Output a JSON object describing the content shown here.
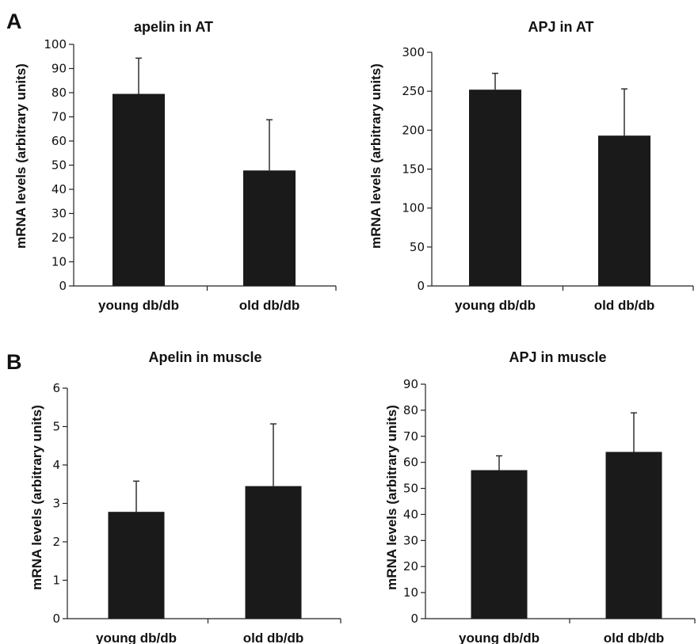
{
  "panel_labels": [
    "A",
    "B"
  ],
  "chart_data": [
    {
      "type": "bar",
      "title": "apelin in AT",
      "ylabel": "mRNA levels (arbitrary units)",
      "categories": [
        "young db/db",
        "old db/db"
      ],
      "values": [
        79.5,
        47.8
      ],
      "errors": [
        14.8,
        21
      ],
      "ylim": [
        0,
        100
      ],
      "yticks": [
        0,
        10,
        20,
        30,
        40,
        50,
        60,
        70,
        80,
        90,
        100
      ]
    },
    {
      "type": "bar",
      "title": "APJ in AT",
      "ylabel": "mRNA levels (arbitrary units)",
      "categories": [
        "young db/db",
        "old db/db"
      ],
      "values": [
        252,
        193
      ],
      "errors": [
        21,
        60
      ],
      "ylim": [
        0,
        300
      ],
      "yticks": [
        0,
        50,
        100,
        150,
        200,
        250,
        300
      ]
    },
    {
      "type": "bar",
      "title": "Apelin in muscle",
      "ylabel": "mRNA levels (arbitrary units)",
      "categories": [
        "young db/db",
        "old db/db"
      ],
      "values": [
        2.78,
        3.45
      ],
      "errors": [
        0.8,
        1.62
      ],
      "ylim": [
        0,
        6
      ],
      "yticks": [
        0,
        1,
        2,
        3,
        4,
        5,
        6
      ]
    },
    {
      "type": "bar",
      "title": "APJ in muscle",
      "ylabel": "mRNA levels (arbitrary units)",
      "categories": [
        "young db/db",
        "old db/db"
      ],
      "values": [
        57,
        64
      ],
      "errors": [
        5.5,
        15
      ],
      "ylim": [
        0,
        90
      ],
      "yticks": [
        0,
        10,
        20,
        30,
        40,
        50,
        60,
        70,
        80,
        90
      ]
    }
  ]
}
